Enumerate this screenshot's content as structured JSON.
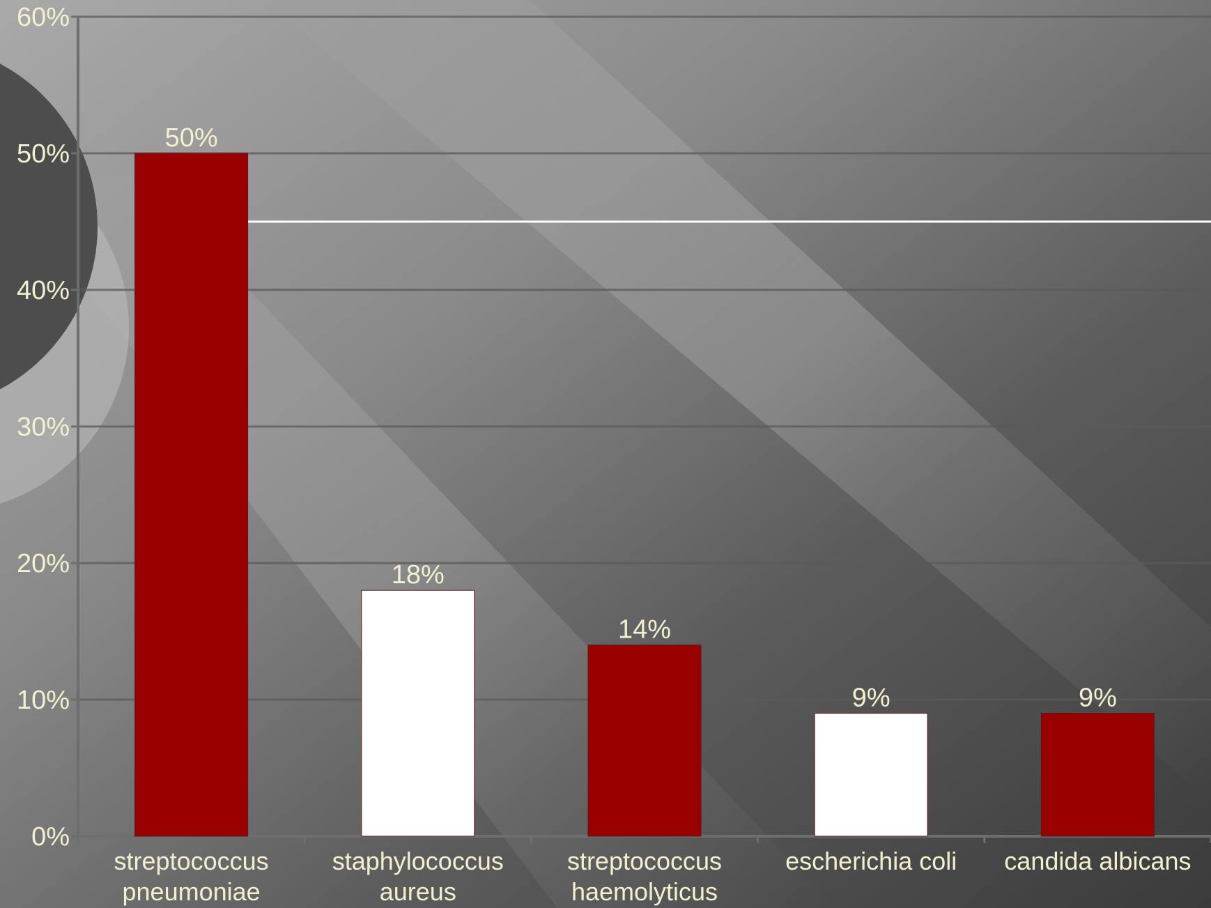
{
  "chart_data": {
    "type": "bar",
    "categories": [
      [
        "streptococcus",
        "pneumoniae"
      ],
      [
        "staphylococcus",
        "aureus"
      ],
      [
        "streptococcus",
        "haemolyticus"
      ],
      [
        "escherichia coli"
      ],
      [
        "candida albicans"
      ]
    ],
    "values": [
      50,
      18,
      14,
      9,
      9
    ],
    "data_labels": [
      "50%",
      "18%",
      "14%",
      "9%",
      "9%"
    ],
    "ylim": [
      0,
      60
    ],
    "yticks": [
      0,
      10,
      20,
      30,
      40,
      50,
      60
    ],
    "ytick_labels": [
      "0%",
      "10%",
      "20%",
      "30%",
      "40%",
      "50%",
      "60%"
    ],
    "grid": true,
    "reference_line": 45,
    "bar_colors": [
      "#990000",
      "#ffffff",
      "#990000",
      "#ffffff",
      "#990000"
    ],
    "label_color": "#f3efcf"
  }
}
